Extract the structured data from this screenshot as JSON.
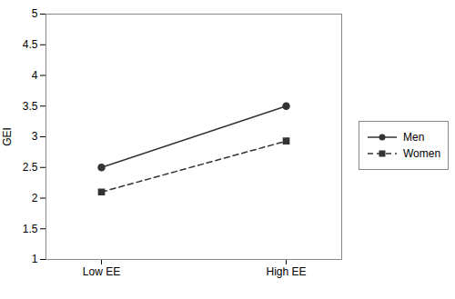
{
  "chart_data": {
    "type": "line",
    "ylabel": "GEI",
    "categories": [
      "Low EE",
      "High EE"
    ],
    "series": [
      {
        "name": "Men",
        "color": "#333333",
        "marker": "circle",
        "line_style": "solid",
        "values": [
          2.5,
          3.5
        ]
      },
      {
        "name": "Women",
        "color": "#333333",
        "marker": "square",
        "line_style": "dashed",
        "values": [
          2.1,
          2.93
        ]
      }
    ],
    "ylim": [
      1,
      5
    ],
    "yticks": [
      1,
      1.5,
      2,
      2.5,
      3,
      3.5,
      4,
      4.5,
      5
    ],
    "legend": "right"
  }
}
